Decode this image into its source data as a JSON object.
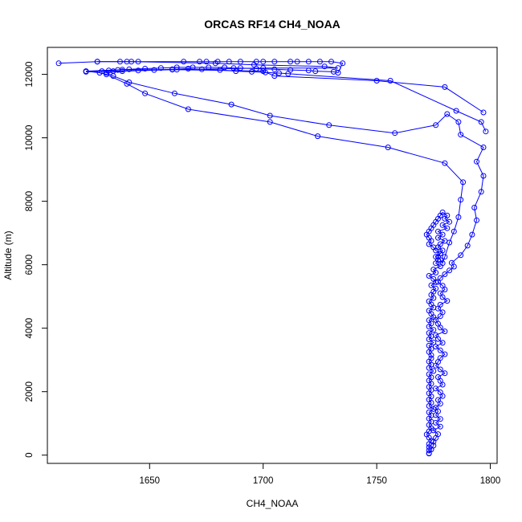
{
  "chart_data": {
    "type": "line",
    "title": "ORCAS RF14 CH4_NOAA",
    "xlabel": "CH4_NOAA",
    "ylabel": "Altitude (m)",
    "xlim": [
      1605,
      1803
    ],
    "ylim": [
      -260,
      12850
    ],
    "xticks": [
      1650,
      1700,
      1750,
      1800
    ],
    "yticks": [
      0,
      2000,
      4000,
      6000,
      8000,
      10000,
      12000
    ],
    "grid": false,
    "legend": "none",
    "colors": {
      "series": "#0000ff",
      "axes": "#000000"
    },
    "series": [
      {
        "x": [
          1773,
          1773,
          1773,
          1773,
          1774,
          1773,
          1772,
          1773,
          1774,
          1773,
          1774,
          1773,
          1774,
          1773,
          1775,
          1773,
          1774,
          1773,
          1774,
          1773,
          1774,
          1773,
          1774,
          1773,
          1774,
          1773,
          1775,
          1773,
          1774,
          1773,
          1774,
          1774,
          1773,
          1774,
          1773,
          1775,
          1773,
          1774,
          1773,
          1775,
          1773,
          1774,
          1773,
          1775,
          1774,
          1773,
          1775,
          1774,
          1773,
          1775,
          1774,
          1775,
          1776,
          1774,
          1776,
          1775,
          1773,
          1776,
          1775,
          1778,
          1776,
          1777,
          1776,
          1778,
          1779,
          1777,
          1778,
          1780,
          1777,
          1779,
          1777,
          1781,
          1779,
          1782,
          1780,
          1781,
          1779,
          1778,
          1777,
          1776,
          1775,
          1774,
          1773,
          1772,
          1773,
          1774,
          1773,
          1775,
          1776,
          1778,
          1777,
          1778,
          1779,
          1780,
          1782,
          1784,
          1786,
          1787,
          1788,
          1780,
          1755,
          1724,
          1703,
          1667,
          1648,
          1640,
          1631,
          1628,
          1622,
          1638,
          1662,
          1700,
          1705,
          1750,
          1780,
          1797
        ],
        "y": [
          50,
          150,
          250,
          350,
          450,
          550,
          650,
          750,
          850,
          950,
          1050,
          1150,
          1250,
          1350,
          1450,
          1550,
          1650,
          1750,
          1850,
          1950,
          2050,
          2150,
          2250,
          2350,
          2450,
          2550,
          2650,
          2750,
          2850,
          2950,
          3050,
          3150,
          3250,
          3350,
          3450,
          3550,
          3650,
          3750,
          3850,
          3950,
          4050,
          4150,
          4250,
          4350,
          4450,
          4550,
          4650,
          4750,
          4850,
          4950,
          5050,
          5150,
          5250,
          5350,
          5450,
          5550,
          5650,
          5750,
          5850,
          5950,
          6050,
          6150,
          6250,
          6350,
          6450,
          6550,
          6650,
          6750,
          6850,
          6950,
          7050,
          7150,
          7250,
          7350,
          7450,
          7550,
          7650,
          7550,
          7450,
          7350,
          7250,
          7150,
          7050,
          6950,
          6850,
          6750,
          6650,
          6550,
          6450,
          6350,
          6250,
          6150,
          6050,
          6250,
          6700,
          7050,
          7500,
          8050,
          8600,
          9200,
          9700,
          10050,
          10500,
          10900,
          11400,
          11700,
          12000,
          12050,
          12100,
          12150,
          12150,
          12100,
          11950,
          11800,
          11600,
          10800
        ]
      },
      {
        "x": [
          1773,
          1774,
          1775,
          1775,
          1776,
          1777,
          1775,
          1778,
          1776,
          1778,
          1776,
          1777,
          1776,
          1778,
          1777,
          1779,
          1778,
          1776,
          1779,
          1778,
          1777,
          1780,
          1778,
          1776,
          1777,
          1778,
          1780,
          1778,
          1776,
          1779,
          1777,
          1776,
          1780,
          1778,
          1777,
          1776,
          1778,
          1779,
          1777,
          1778,
          1781,
          1779,
          1778,
          1780,
          1779,
          1777,
          1778,
          1780,
          1782,
          1784,
          1783,
          1787,
          1790,
          1792,
          1794,
          1793,
          1796,
          1797,
          1794,
          1797,
          1787,
          1786,
          1781,
          1776,
          1758,
          1729,
          1703,
          1686,
          1661,
          1641,
          1634,
          1631,
          1638,
          1660,
          1700,
          1733,
          1727,
          1696,
          1679,
          1642,
          1627
        ],
        "y": [
          60,
          180,
          300,
          420,
          540,
          660,
          780,
          900,
          1020,
          1140,
          1260,
          1380,
          1500,
          1620,
          1740,
          1860,
          1980,
          2100,
          2220,
          2340,
          2460,
          2580,
          2700,
          2820,
          2940,
          3060,
          3180,
          3300,
          3420,
          3540,
          3660,
          3780,
          3900,
          4020,
          4140,
          4260,
          4380,
          4500,
          4620,
          4740,
          4860,
          4980,
          5100,
          5220,
          5340,
          5460,
          5580,
          5700,
          5820,
          5940,
          6060,
          6300,
          6600,
          6950,
          7400,
          7800,
          8300,
          8800,
          9250,
          9700,
          10100,
          10500,
          10750,
          10400,
          10150,
          10400,
          10700,
          11050,
          11400,
          11750,
          11950,
          12050,
          12100,
          12150,
          12200,
          12200,
          12250,
          12300,
          12350,
          12400,
          12400
        ]
      },
      {
        "x": [
          1610,
          1627,
          1637,
          1640,
          1645,
          1665,
          1672,
          1675,
          1680,
          1685,
          1690,
          1697,
          1700,
          1705,
          1712,
          1715,
          1720,
          1725,
          1730,
          1735,
          1733,
          1731,
          1723,
          1720,
          1712,
          1705,
          1697,
          1690,
          1687,
          1683,
          1676,
          1669,
          1662,
          1655,
          1648,
          1641,
          1636,
          1632,
          1629,
          1622,
          1634,
          1645,
          1652,
          1660,
          1667,
          1673,
          1681,
          1688,
          1695,
          1701,
          1707,
          1711,
          1756,
          1785,
          1796,
          1798
        ],
        "y": [
          12350,
          12400,
          12400,
          12400,
          12400,
          12400,
          12400,
          12400,
          12400,
          12400,
          12400,
          12400,
          12400,
          12400,
          12400,
          12400,
          12400,
          12400,
          12400,
          12350,
          12050,
          12080,
          12100,
          12120,
          12140,
          12160,
          12180,
          12200,
          12200,
          12220,
          12220,
          12220,
          12220,
          12200,
          12180,
          12160,
          12140,
          12120,
          12100,
          12080,
          12100,
          12120,
          12140,
          12160,
          12180,
          12160,
          12140,
          12100,
          12080,
          12060,
          12040,
          12020,
          11800,
          10850,
          10500,
          10200
        ]
      }
    ]
  }
}
